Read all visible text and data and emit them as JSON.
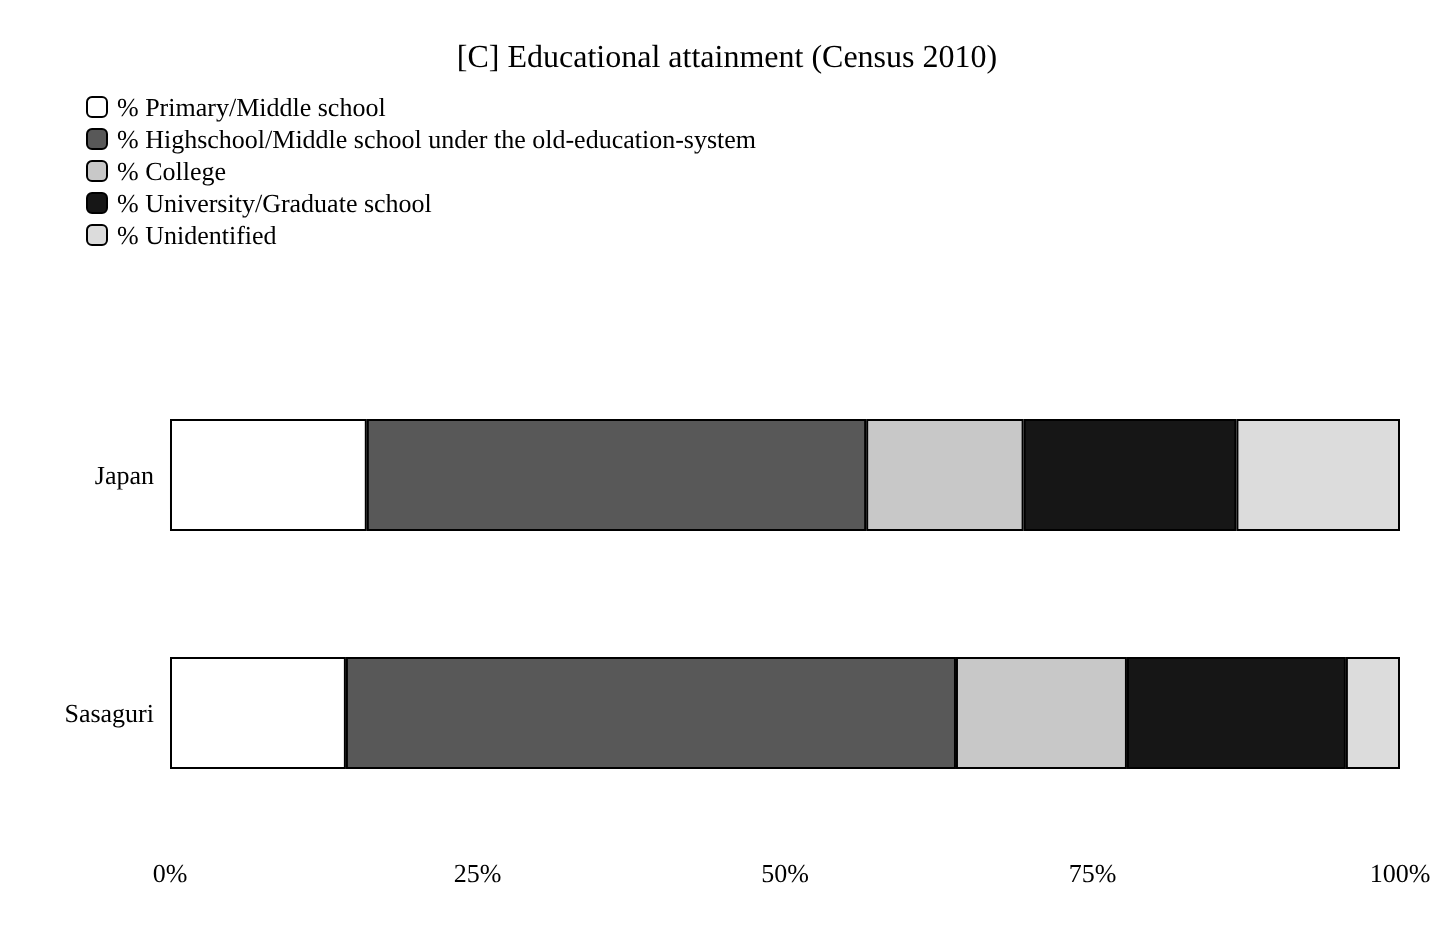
{
  "chart_data": {
    "type": "bar",
    "title": "[C] Educational attainment (Census 2010)",
    "orientation": "horizontal",
    "stacked": true,
    "categories": [
      "Japan",
      "Sasaguri"
    ],
    "series": [
      {
        "name": "% Primary/Middle school",
        "color": "#ffffff",
        "values": [
          16.0,
          14.3
        ]
      },
      {
        "name": "% Highschool/Middle school under the old-education-system",
        "color": "#585858",
        "values": [
          40.6,
          49.6
        ]
      },
      {
        "name": "% College",
        "color": "#c8c8c8",
        "values": [
          12.8,
          13.9
        ]
      },
      {
        "name": "% University/Graduate school",
        "color": "#161616",
        "values": [
          17.3,
          17.8
        ]
      },
      {
        "name": "% Unidentified",
        "color": "#dcdcdc",
        "values": [
          13.3,
          4.4
        ]
      }
    ],
    "xlim": [
      0,
      100
    ],
    "xticks": [
      {
        "value": 0,
        "label": "0%"
      },
      {
        "value": 25,
        "label": "25%"
      },
      {
        "value": 50,
        "label": "50%"
      },
      {
        "value": 75,
        "label": "75%"
      },
      {
        "value": 100,
        "label": "100%"
      }
    ],
    "grid": false,
    "legend": "top left"
  }
}
